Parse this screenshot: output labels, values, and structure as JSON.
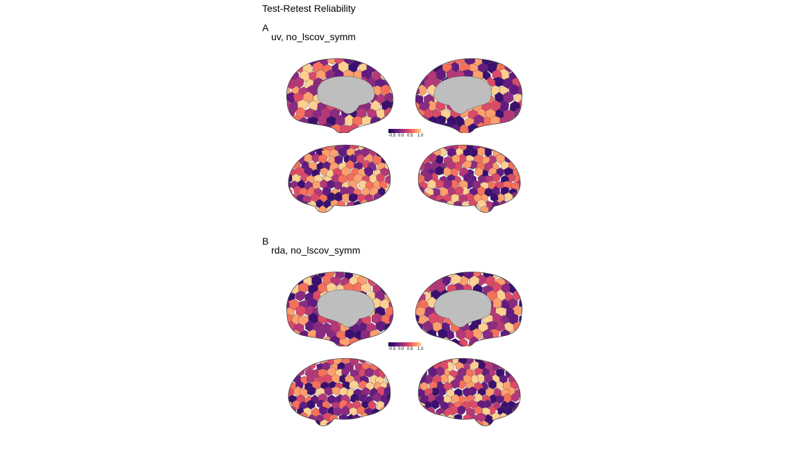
{
  "figure": {
    "title": "Test-Retest Reliability"
  },
  "panels": [
    {
      "letter": "A",
      "subtitle": "uv, no_lscov_symm",
      "colorbar_ticks": [
        "-0.5",
        "0.0",
        "0.5",
        "1.0"
      ]
    },
    {
      "letter": "B",
      "subtitle": "rda, no_lscov_symm",
      "colorbar_ticks": [
        "-0.5",
        "0.0",
        "0.5",
        "1.0"
      ]
    }
  ],
  "colors": {
    "palette": [
      "#140e36",
      "#3b0f70",
      "#641a80",
      "#8c2981",
      "#b73779",
      "#de4968",
      "#f7705c",
      "#fe9f6d",
      "#fecf92"
    ],
    "medial_wall": "#bebebe",
    "outline": "#555555"
  }
}
